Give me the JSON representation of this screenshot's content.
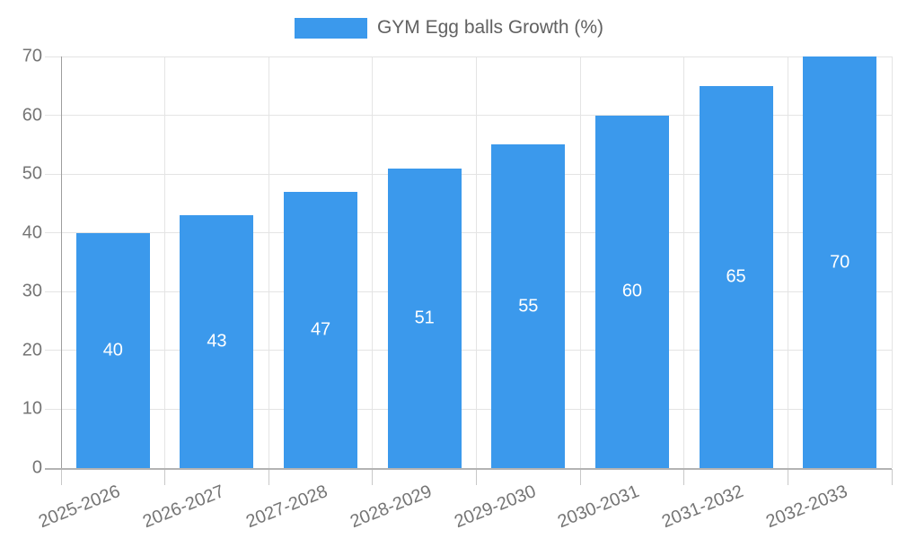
{
  "chart_data": {
    "type": "bar",
    "title": "GYM Egg balls Growth (%)",
    "categories": [
      "2025-2026",
      "2026-2027",
      "2027-2028",
      "2028-2029",
      "2029-2030",
      "2030-2031",
      "2031-2032",
      "2032-2033"
    ],
    "values": [
      40,
      43,
      47,
      51,
      55,
      60,
      65,
      70
    ],
    "bar_labels": [
      "40",
      "43",
      "47",
      "51",
      "55",
      "60",
      "65",
      "70"
    ],
    "xlabel": "",
    "ylabel": "",
    "ylim": [
      0,
      70
    ],
    "y_ticks": [
      0,
      10,
      20,
      30,
      40,
      50,
      60,
      70
    ],
    "grid": true,
    "legend_position": "top",
    "legend_label": "GYM Egg balls Growth (%)"
  },
  "colors": {
    "bar": "#3b99ec",
    "bar_label": "#ffffff",
    "grid": "#e4e4e4",
    "axis_y": "#9e9e9e",
    "axis_x": "#b3b3b3",
    "tick": "#c8c8c8",
    "tick_label": "#757575",
    "legend_text": "#616161",
    "background": "#ffffff"
  }
}
